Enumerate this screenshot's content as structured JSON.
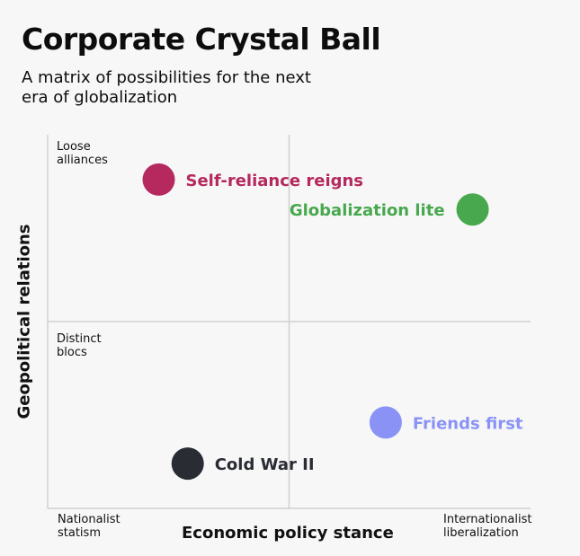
{
  "title": "Corporate Crystal Ball",
  "subtitle": "A matrix of possibilities for the next era of globalization",
  "chart_data": {
    "type": "scatter",
    "xlabel": "Economic policy stance",
    "ylabel": "Geopolitical relations",
    "xlim": [
      0,
      10
    ],
    "ylim": [
      0,
      10
    ],
    "grid": "quadrant dividers",
    "x_axis_end_labels": {
      "low": "Nationalist\nstatism",
      "high": "Internationalist\nliberalization"
    },
    "y_axis_end_labels": {
      "high": "Loose\nalliances",
      "low": "Distinct\nblocs"
    },
    "points": [
      {
        "label": "Self-reliance reigns",
        "x": 2.3,
        "y": 8.8,
        "color": "#b5295e",
        "label_side": "right"
      },
      {
        "label": "Globalization lite",
        "x": 8.8,
        "y": 8.0,
        "color": "#48a84e",
        "label_side": "left"
      },
      {
        "label": "Friends first",
        "x": 7.0,
        "y": 2.3,
        "color": "#8a93f5",
        "label_side": "right"
      },
      {
        "label": "Cold War II",
        "x": 2.9,
        "y": 1.2,
        "color": "#2a2c33",
        "label_side": "right"
      }
    ]
  },
  "colors": {
    "background": "#f7f7f7",
    "axis": "#d0d0d0",
    "text": "#111111"
  }
}
